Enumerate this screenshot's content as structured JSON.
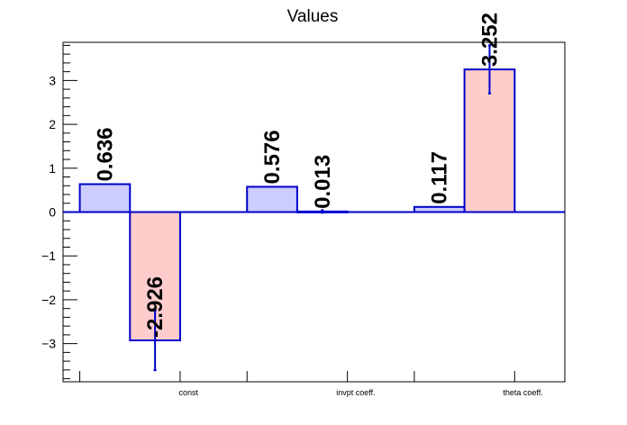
{
  "chart_data": {
    "type": "bar",
    "title": "Values",
    "xlabel": "",
    "ylabel": "",
    "categories": [
      "const",
      "invpt coeff.",
      "theta coeff."
    ],
    "series": [
      {
        "values": [
          0.636,
          0.576,
          0.117
        ],
        "errors": [
          0,
          0,
          0
        ],
        "fill": "#ccccff",
        "stroke": "#0000cc"
      },
      {
        "values": [
          -2.926,
          0.013,
          3.252
        ],
        "errors": [
          0.68,
          0.03,
          0.55
        ],
        "fill": "#ffcccc",
        "stroke": "#0000cc"
      }
    ],
    "data_labels": [
      [
        "0.636",
        "0.576",
        "0.117"
      ],
      [
        "-2.926",
        "0.013",
        "3.252"
      ]
    ],
    "ylim": [
      -3.87,
      3.87
    ],
    "yticks": [
      -3,
      -2,
      -1,
      0,
      1,
      2,
      3
    ],
    "ytick_labels": [
      "−3",
      "−2",
      "−1",
      "0",
      "1",
      "2",
      "3"
    ],
    "grid": false,
    "legend": "none"
  }
}
